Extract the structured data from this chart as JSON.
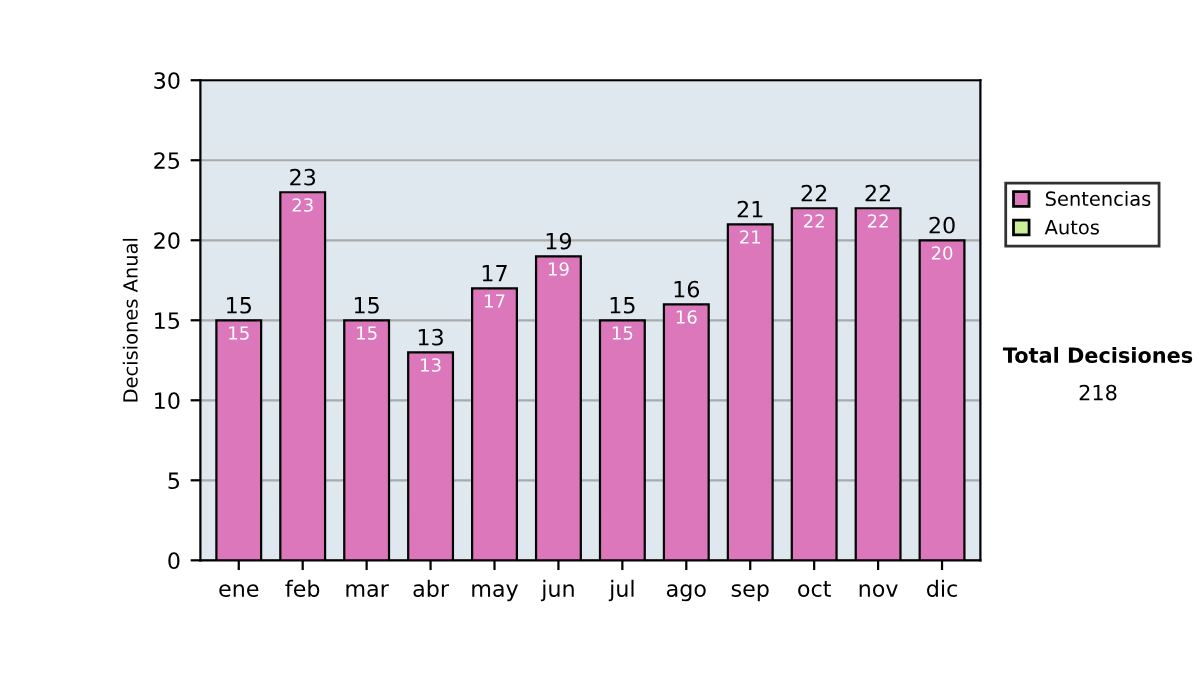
{
  "chart_data": {
    "type": "bar",
    "stacked": true,
    "ylabel": "Decisiones Anual",
    "categories": [
      "ene",
      "feb",
      "mar",
      "abr",
      "may",
      "jun",
      "jul",
      "ago",
      "sep",
      "oct",
      "nov",
      "dic"
    ],
    "series": [
      {
        "name": "Sentencias",
        "color": "#dd77bb",
        "values": [
          15,
          23,
          15,
          13,
          17,
          19,
          15,
          16,
          21,
          22,
          22,
          20
        ],
        "value_labels": [
          "15",
          "23",
          "15",
          "13",
          "17",
          "19",
          "15",
          "16",
          "21",
          "22",
          "22",
          "20"
        ]
      },
      {
        "name": "Autos",
        "color": "#ccee99",
        "values": [
          0,
          0,
          0,
          0,
          0,
          0,
          0,
          0,
          0,
          0,
          0,
          0
        ]
      }
    ],
    "totals": [
      "15",
      "23",
      "15",
      "13",
      "17",
      "19",
      "15",
      "16",
      "21",
      "22",
      "22",
      "20"
    ],
    "ylim": [
      0,
      30
    ],
    "yticks": [
      0,
      5,
      10,
      15,
      20,
      25,
      30
    ],
    "grid": "y",
    "legend": "right",
    "annotations": [
      "Total Decisiones",
      "218"
    ]
  }
}
